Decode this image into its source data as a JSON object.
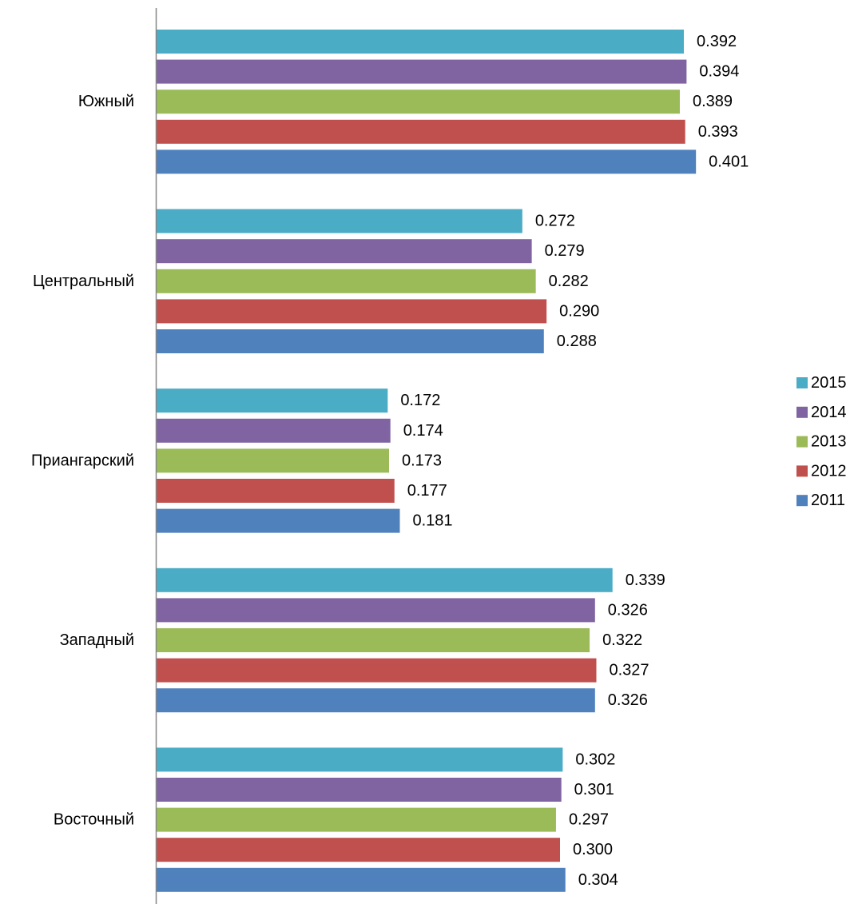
{
  "chart_data": {
    "type": "bar",
    "orientation": "horizontal",
    "title": "",
    "xlabel": "",
    "ylabel": "",
    "xlim": [
      0,
      0.41
    ],
    "grid": false,
    "legend_position": "right",
    "categories": [
      "Южный",
      "Центральный",
      "Приангарский",
      "Западный",
      "Восточный"
    ],
    "series": [
      {
        "name": "2015",
        "color": "#4BACC6",
        "values": [
          0.392,
          0.272,
          0.172,
          0.339,
          0.302
        ],
        "labels": [
          "0.392",
          "0.272",
          "0.172",
          "0.339",
          "0.302"
        ]
      },
      {
        "name": "2014",
        "color": "#8064A2",
        "values": [
          0.394,
          0.279,
          0.174,
          0.326,
          0.301
        ],
        "labels": [
          "0.394",
          "0.279",
          "0.174",
          "0.326",
          "0.301"
        ]
      },
      {
        "name": "2013",
        "color": "#9BBB59",
        "values": [
          0.389,
          0.282,
          0.173,
          0.322,
          0.297
        ],
        "labels": [
          "0.389",
          "0.282",
          "0.173",
          "0.322",
          "0.297"
        ]
      },
      {
        "name": "2012",
        "color": "#C0504D",
        "values": [
          0.393,
          0.29,
          0.177,
          0.327,
          0.3
        ],
        "labels": [
          "0.393",
          "0.290",
          "0.177",
          "0.327",
          "0.300"
        ]
      },
      {
        "name": "2011",
        "color": "#4F81BD",
        "values": [
          0.401,
          0.288,
          0.181,
          0.326,
          0.304
        ],
        "labels": [
          "0.401",
          "0.288",
          "0.181",
          "0.326",
          "0.304"
        ]
      }
    ]
  }
}
